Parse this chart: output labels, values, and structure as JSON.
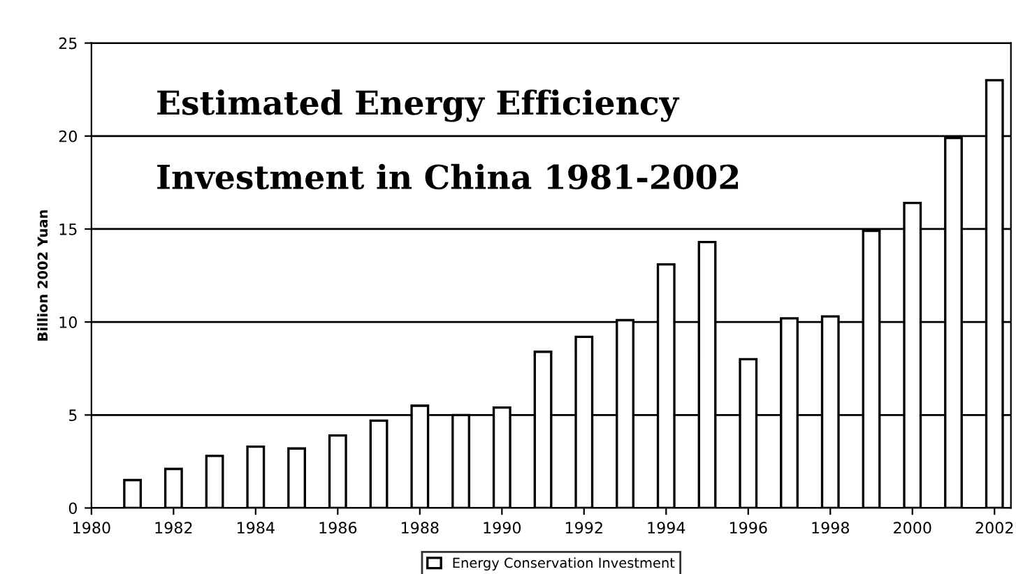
{
  "chart_data": {
    "type": "bar",
    "title": "Estimated Energy Efficiency\n\nInvestment in China 1981-2002",
    "ylabel": "Billion 2002 Yuan",
    "x": [
      1981,
      1982,
      1983,
      1984,
      1985,
      1986,
      1987,
      1988,
      1989,
      1990,
      1991,
      1992,
      1993,
      1994,
      1995,
      1996,
      1997,
      1998,
      1999,
      2000,
      2001,
      2002
    ],
    "series": [
      {
        "name": "Energy Conservation Investment",
        "color": "#ffffff",
        "values": [
          1.5,
          2.1,
          2.8,
          3.3,
          3.2,
          3.9,
          4.7,
          5.5,
          5.0,
          5.4,
          8.4,
          9.2,
          10.1,
          13.1,
          14.3,
          8.0,
          10.2,
          10.3,
          14.9,
          16.4,
          19.9,
          23.0
        ]
      }
    ],
    "xlim": [
      1980,
      2002.4
    ],
    "xticks": [
      1980,
      1982,
      1984,
      1986,
      1988,
      1990,
      1992,
      1994,
      1996,
      1998,
      2000,
      2002
    ],
    "ylim": [
      0,
      25
    ],
    "yticks": [
      0,
      5,
      10,
      15,
      20,
      25
    ],
    "grid": "y",
    "legend": "bottom"
  }
}
